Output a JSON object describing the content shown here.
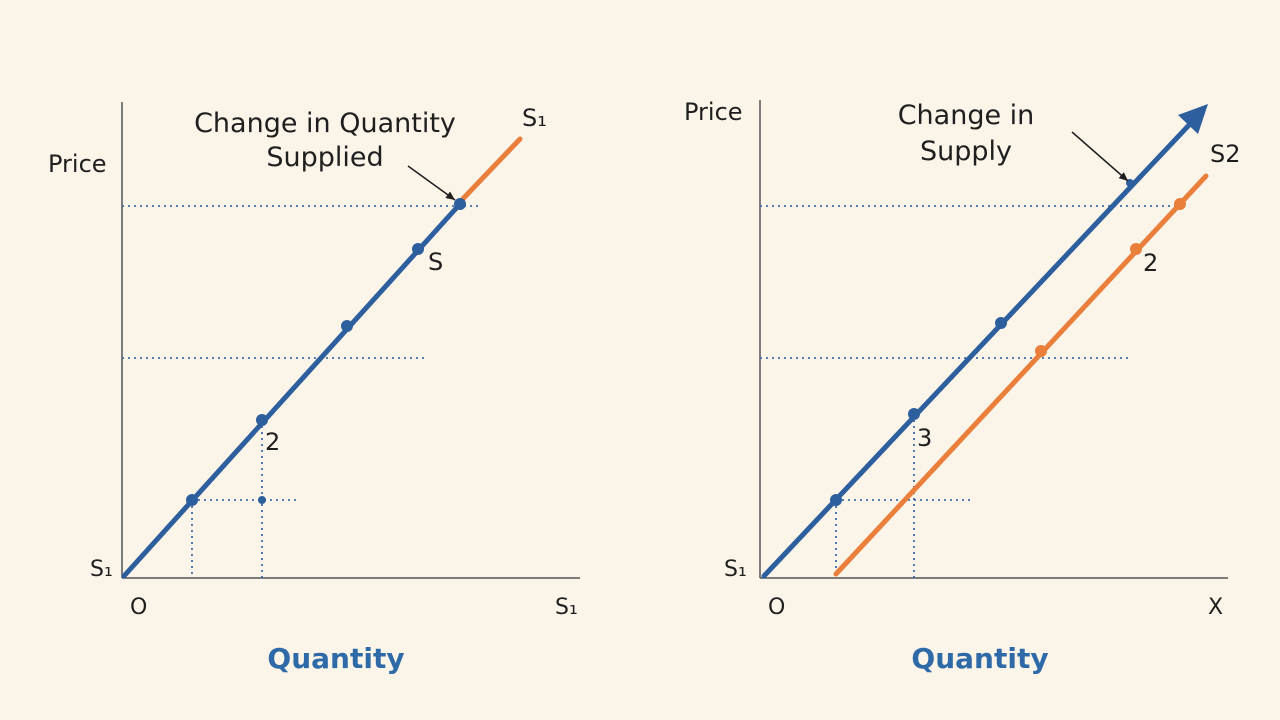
{
  "colors": {
    "background": "#fbf4e8",
    "supply_blue": "#2d5f9e",
    "supply_orange": "#ea7f3c",
    "axis": "#555555",
    "guide": "#3c6ca8",
    "quantity_label": "#2f6aa8",
    "text": "#1f1f1f"
  },
  "left_panel": {
    "y_axis_label": "Price",
    "x_axis_label": "Quantity",
    "origin_label": "O",
    "x_axis_end_label": "S₁",
    "curve_start_label": "S₁",
    "curve_top_label": "S₁",
    "curve_mid_label": "S",
    "point_label": "2",
    "annotation_line1": "Change in Quantity",
    "annotation_line2": "Supplied"
  },
  "right_panel": {
    "y_axis_label": "Price",
    "x_axis_label": "Quantity",
    "origin_label": "O",
    "x_axis_end_label": "X",
    "curve_start_label": "S₁",
    "shifted_curve_label": "S2",
    "point_label_blue": "3",
    "point_label_orange": "2",
    "annotation_line1": "Change in",
    "annotation_line2": "Supply"
  }
}
